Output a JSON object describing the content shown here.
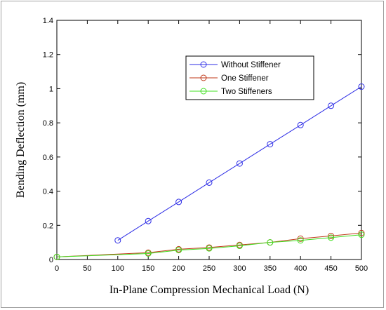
{
  "colors": {
    "without_stiffener": "#2e2ee6",
    "one_stiffener": "#c0391a",
    "two_stiffeners": "#40e020"
  },
  "chart_data": {
    "type": "line",
    "title": "",
    "xlabel": "In-Plane Compression Mechanical Load (N)",
    "ylabel": "Bending Deflection (mm)",
    "xlim": [
      0,
      500
    ],
    "ylim": [
      0,
      1.4
    ],
    "xticks": [
      "0",
      "50",
      "100",
      "150",
      "200",
      "250",
      "300",
      "350",
      "400",
      "450",
      "500"
    ],
    "yticks": [
      "0",
      "0.2",
      "0.4",
      "0.6",
      "0.8",
      "1",
      "1.2",
      "1.4"
    ],
    "grid": false,
    "legend_position": "top-right",
    "series": [
      {
        "name": "Without Stiffener",
        "color": "#2e2ee6",
        "marker": "circle",
        "x": [
          100,
          150,
          200,
          250,
          300,
          350,
          400,
          450,
          500
        ],
        "y": [
          0.112,
          0.225,
          0.337,
          0.45,
          0.562,
          0.675,
          0.787,
          0.9,
          1.012
        ]
      },
      {
        "name": "One Stiffener",
        "color": "#c0391a",
        "marker": "circle",
        "x": [
          0,
          150,
          200,
          250,
          300,
          350,
          400,
          450,
          500
        ],
        "y": [
          0.015,
          0.04,
          0.06,
          0.07,
          0.085,
          0.1,
          0.122,
          0.138,
          0.155
        ]
      },
      {
        "name": "Two Stiffeners",
        "color": "#40e020",
        "marker": "circle",
        "x": [
          0,
          150,
          200,
          250,
          300,
          350,
          400,
          450,
          500
        ],
        "y": [
          0.015,
          0.035,
          0.055,
          0.065,
          0.08,
          0.1,
          0.112,
          0.128,
          0.145
        ]
      }
    ]
  }
}
